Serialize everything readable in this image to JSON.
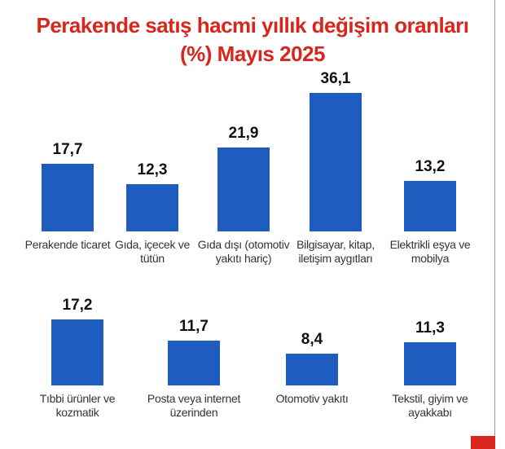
{
  "chart_data": {
    "type": "bar",
    "title": "Perakende satış hacmi yıllık değişim oranları (%) Mayıs 2025",
    "categories": [
      "Perakende ticaret",
      "Gıda, içecek ve tütün",
      "Gıda dışı (otomotiv yakıtı hariç)",
      "Bilgisayar, kitap, iletişim aygıtları",
      "Elektrikli eşya ve mobilya",
      "Tıbbi ürünler ve kozmatik",
      "Posta veya internet üzerinden",
      "Otomotiv yakıtı",
      "Tekstil, giyim ve ayakkabı"
    ],
    "values": [
      17.7,
      12.3,
      21.9,
      36.1,
      13.2,
      17.2,
      11.7,
      8.4,
      11.3
    ],
    "value_labels": [
      "17,7",
      "12,3",
      "21,9",
      "36,1",
      "13,2",
      "17,2",
      "11,7",
      "8,4",
      "11,3"
    ],
    "color": "#1f5cc0"
  }
}
